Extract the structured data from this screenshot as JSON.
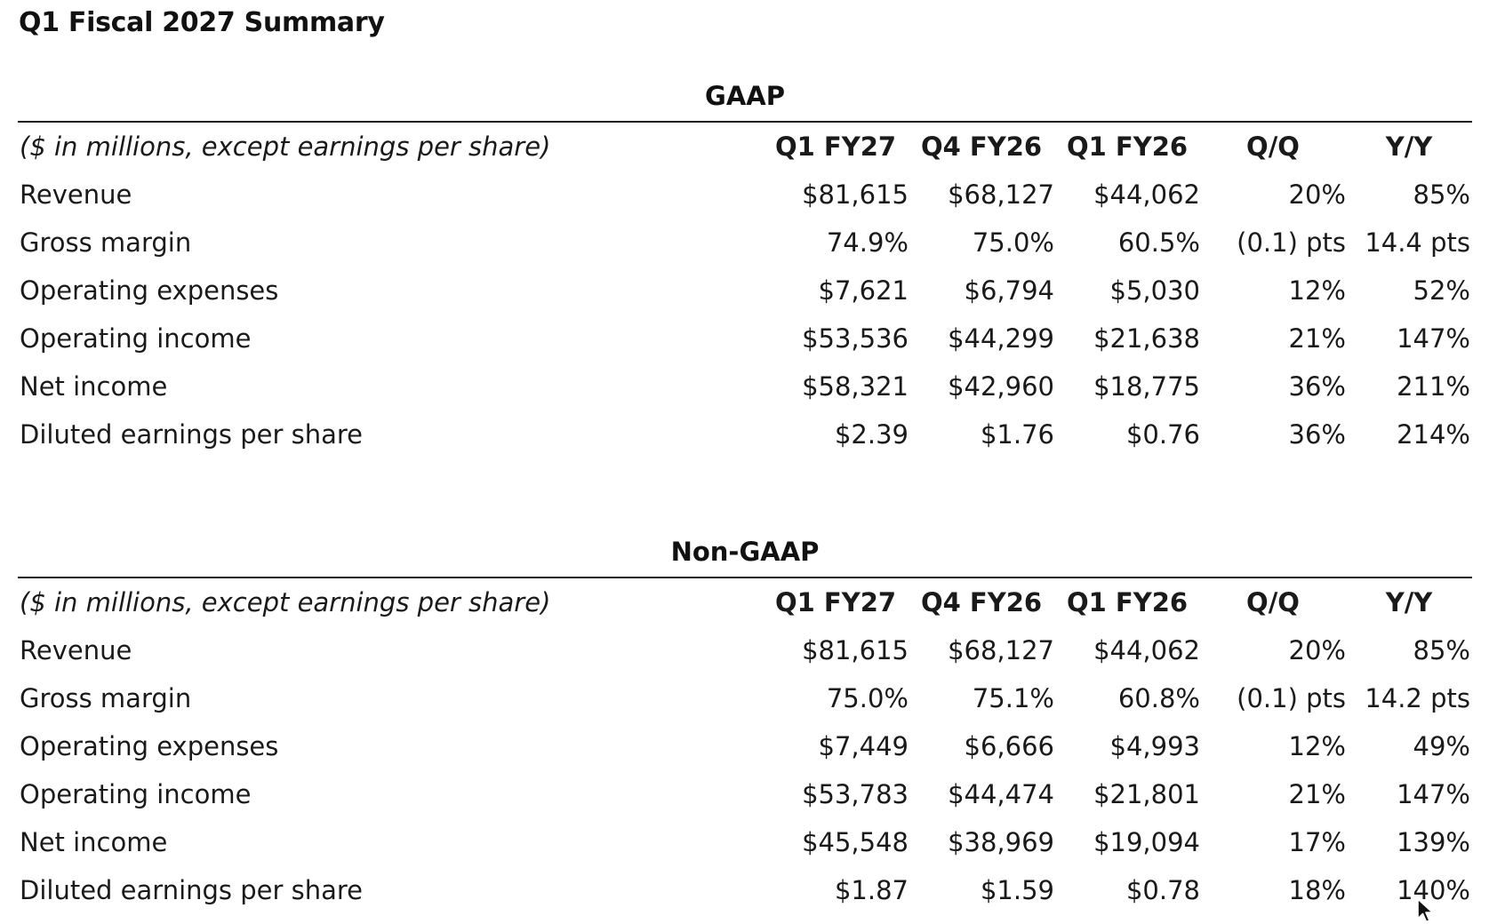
{
  "page_title": "Q1 Fiscal 2027 Summary",
  "units_label": "($ in millions, except earnings per share)",
  "columns": [
    "Q1 FY27",
    "Q4 FY26",
    "Q1 FY26",
    "Q/Q",
    "Y/Y"
  ],
  "gaap": {
    "title": "GAAP",
    "rows": [
      {
        "label": "Revenue",
        "values": [
          "$81,615",
          "$68,127",
          "$44,062",
          "20%",
          "85%"
        ]
      },
      {
        "label": "Gross margin",
        "values": [
          "74.9%",
          "75.0%",
          "60.5%",
          "(0.1) pts",
          "14.4 pts"
        ]
      },
      {
        "label": "Operating expenses",
        "values": [
          "$7,621",
          "$6,794",
          "$5,030",
          "12%",
          "52%"
        ]
      },
      {
        "label": "Operating income",
        "values": [
          "$53,536",
          "$44,299",
          "$21,638",
          "21%",
          "147%"
        ]
      },
      {
        "label": "Net income",
        "values": [
          "$58,321",
          "$42,960",
          "$18,775",
          "36%",
          "211%"
        ]
      },
      {
        "label": "Diluted earnings per share",
        "values": [
          "$2.39",
          "$1.76",
          "$0.76",
          "36%",
          "214%"
        ]
      }
    ]
  },
  "nongaap": {
    "title": "Non-GAAP",
    "rows": [
      {
        "label": "Revenue",
        "values": [
          "$81,615",
          "$68,127",
          "$44,062",
          "20%",
          "85%"
        ]
      },
      {
        "label": "Gross margin",
        "values": [
          "75.0%",
          "75.1%",
          "60.8%",
          "(0.1) pts",
          "14.2 pts"
        ]
      },
      {
        "label": "Operating expenses",
        "values": [
          "$7,449",
          "$6,666",
          "$4,993",
          "12%",
          "49%"
        ]
      },
      {
        "label": "Operating income",
        "values": [
          "$53,783",
          "$44,474",
          "$21,801",
          "21%",
          "147%"
        ]
      },
      {
        "label": "Net income",
        "values": [
          "$45,548",
          "$38,969",
          "$19,094",
          "17%",
          "139%"
        ]
      },
      {
        "label": "Diluted earnings per share",
        "values": [
          "$1.87",
          "$1.59",
          "$0.78",
          "18%",
          "140%"
        ]
      }
    ]
  },
  "icons": {
    "cursor": "mouse-pointer-icon"
  }
}
